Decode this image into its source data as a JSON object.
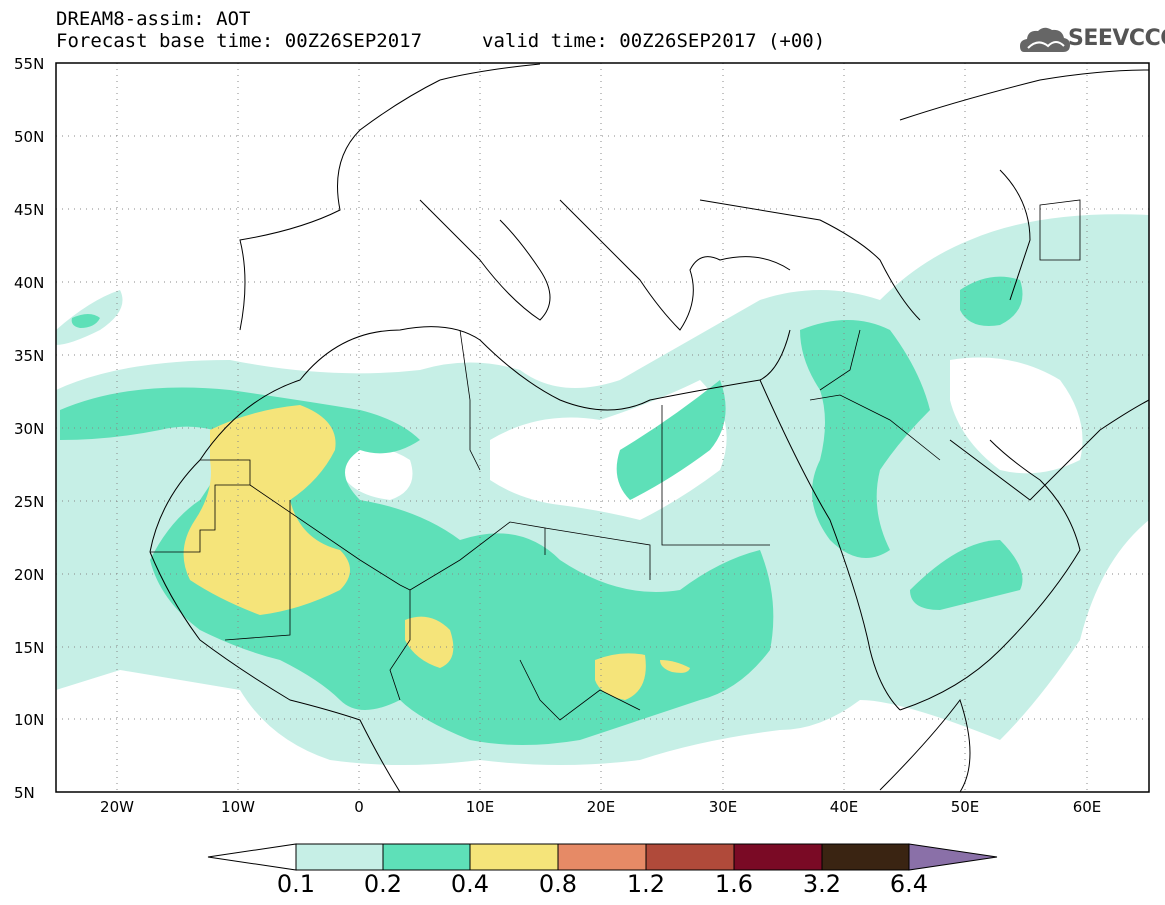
{
  "title": {
    "line1": "DREAM8-assim: AOT",
    "line2": "Forecast base time: 00Z26SEP2017",
    "valid": "valid time: 00Z26SEP2017 (+00)"
  },
  "logo": {
    "text": "SEEVCCC",
    "icon": "cloud-icon"
  },
  "map": {
    "lat_labels": [
      "55N",
      "50N",
      "45N",
      "40N",
      "35N",
      "30N",
      "25N",
      "20N",
      "15N",
      "10N",
      "5N"
    ],
    "lon_labels": [
      "20W",
      "10W",
      "0",
      "10E",
      "20E",
      "30E",
      "40E",
      "50E",
      "60E"
    ],
    "lat_range": [
      5,
      55
    ],
    "lon_range": [
      -25,
      65
    ],
    "grid": "dotted"
  },
  "colorbar": {
    "labels": [
      "0.1",
      "0.2",
      "0.4",
      "0.8",
      "1.2",
      "1.6",
      "3.2",
      "6.4"
    ],
    "colors": [
      "#ffffff",
      "#c6efe6",
      "#5ee0b8",
      "#f5e47a",
      "#e68a66",
      "#b04a3a",
      "#7a0a25",
      "#3a2412",
      "#8a70a8"
    ]
  },
  "chart_data": {
    "type": "heatmap",
    "variable": "AOT",
    "levels": [
      0.1,
      0.2,
      0.4,
      0.8,
      1.2,
      1.6,
      3.2,
      6.4
    ]
  }
}
